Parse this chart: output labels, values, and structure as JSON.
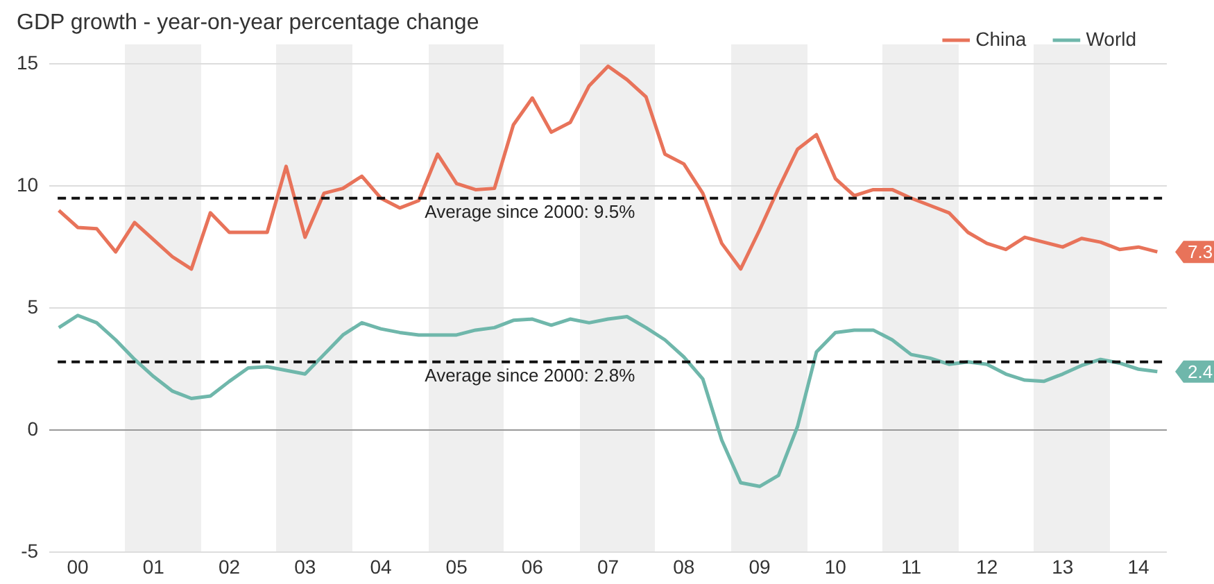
{
  "chart_data": {
    "type": "line",
    "title": "GDP growth - year-on-year percentage change",
    "categories": [
      null,
      "00",
      null,
      null,
      null,
      "01",
      null,
      null,
      null,
      "02",
      null,
      null,
      null,
      "03",
      null,
      null,
      null,
      "04",
      null,
      null,
      null,
      "05",
      null,
      null,
      null,
      "06",
      null,
      null,
      null,
      "07",
      null,
      null,
      null,
      "08",
      null,
      null,
      null,
      "09",
      null,
      null,
      null,
      "10",
      null,
      null,
      null,
      "11",
      null,
      null,
      null,
      "12",
      null,
      null,
      null,
      "13",
      null,
      null,
      null,
      "14",
      null
    ],
    "series": [
      {
        "name": "China",
        "color": "#e8735a",
        "values": [
          9.0,
          8.3,
          8.25,
          7.3,
          8.5,
          7.8,
          7.1,
          6.6,
          8.9,
          8.1,
          8.1,
          8.1,
          10.8,
          7.9,
          9.7,
          9.9,
          10.4,
          9.5,
          9.1,
          9.4,
          11.3,
          10.1,
          9.85,
          9.9,
          12.5,
          13.6,
          12.2,
          12.6,
          14.1,
          14.9,
          14.35,
          13.65,
          11.3,
          10.9,
          9.7,
          7.65,
          6.6,
          8.2,
          9.9,
          11.5,
          12.1,
          10.3,
          9.6,
          9.85,
          9.85,
          9.5,
          9.2,
          8.9,
          8.1,
          7.65,
          7.4,
          7.9,
          7.7,
          7.5,
          7.85,
          7.7,
          7.4,
          7.5,
          7.3
        ],
        "value_labels": [
          null,
          null,
          null,
          null,
          null,
          null,
          null,
          null,
          null,
          null,
          null,
          null,
          null,
          null,
          null,
          null,
          null,
          null,
          null,
          null,
          null,
          null,
          null,
          null,
          null,
          null,
          null,
          null,
          null,
          null,
          null,
          null,
          null,
          null,
          null,
          null,
          null,
          null,
          null,
          null,
          null,
          null,
          null,
          null,
          null,
          null,
          null,
          null,
          null,
          null,
          null,
          null,
          null,
          null,
          null,
          null,
          null,
          null,
          "7.3"
        ]
      },
      {
        "name": "World",
        "color": "#6fb7ab",
        "values": [
          4.2,
          4.7,
          4.4,
          3.7,
          2.9,
          2.2,
          1.6,
          1.3,
          1.4,
          2.0,
          2.55,
          2.6,
          2.45,
          2.3,
          3.1,
          3.9,
          4.4,
          4.15,
          4.0,
          3.9,
          3.9,
          3.9,
          4.1,
          4.2,
          4.5,
          4.55,
          4.3,
          4.55,
          4.4,
          4.55,
          4.65,
          4.2,
          3.7,
          3.0,
          2.1,
          -0.4,
          -2.15,
          -2.3,
          -1.85,
          0.15,
          3.2,
          4.0,
          4.1,
          4.1,
          3.7,
          3.1,
          2.95,
          2.7,
          2.8,
          2.7,
          2.3,
          2.05,
          2.0,
          2.3,
          2.65,
          2.9,
          2.75,
          2.5,
          2.4
        ],
        "value_labels": [
          null,
          null,
          null,
          null,
          null,
          null,
          null,
          null,
          null,
          null,
          null,
          null,
          null,
          null,
          null,
          null,
          null,
          null,
          null,
          null,
          null,
          null,
          null,
          null,
          null,
          null,
          null,
          null,
          null,
          null,
          null,
          null,
          null,
          null,
          null,
          null,
          null,
          null,
          null,
          null,
          null,
          null,
          null,
          null,
          null,
          null,
          null,
          null,
          null,
          null,
          null,
          null,
          null,
          null,
          null,
          null,
          null,
          null,
          "2.4"
        ]
      }
    ],
    "ylim": [
      -5,
      15
    ],
    "yticks": [
      -5,
      0,
      5,
      10,
      15
    ],
    "grid": "y",
    "legend": "top right",
    "ref_lines": [
      {
        "axis": "y",
        "value": 9.5,
        "label": "Average since 2000: 9.5%",
        "color": "#111111",
        "line_style": "dashed"
      },
      {
        "axis": "y",
        "value": 2.8,
        "label": "Average since 2000: 2.8%",
        "color": "#111111",
        "line_style": "dashed"
      }
    ]
  }
}
